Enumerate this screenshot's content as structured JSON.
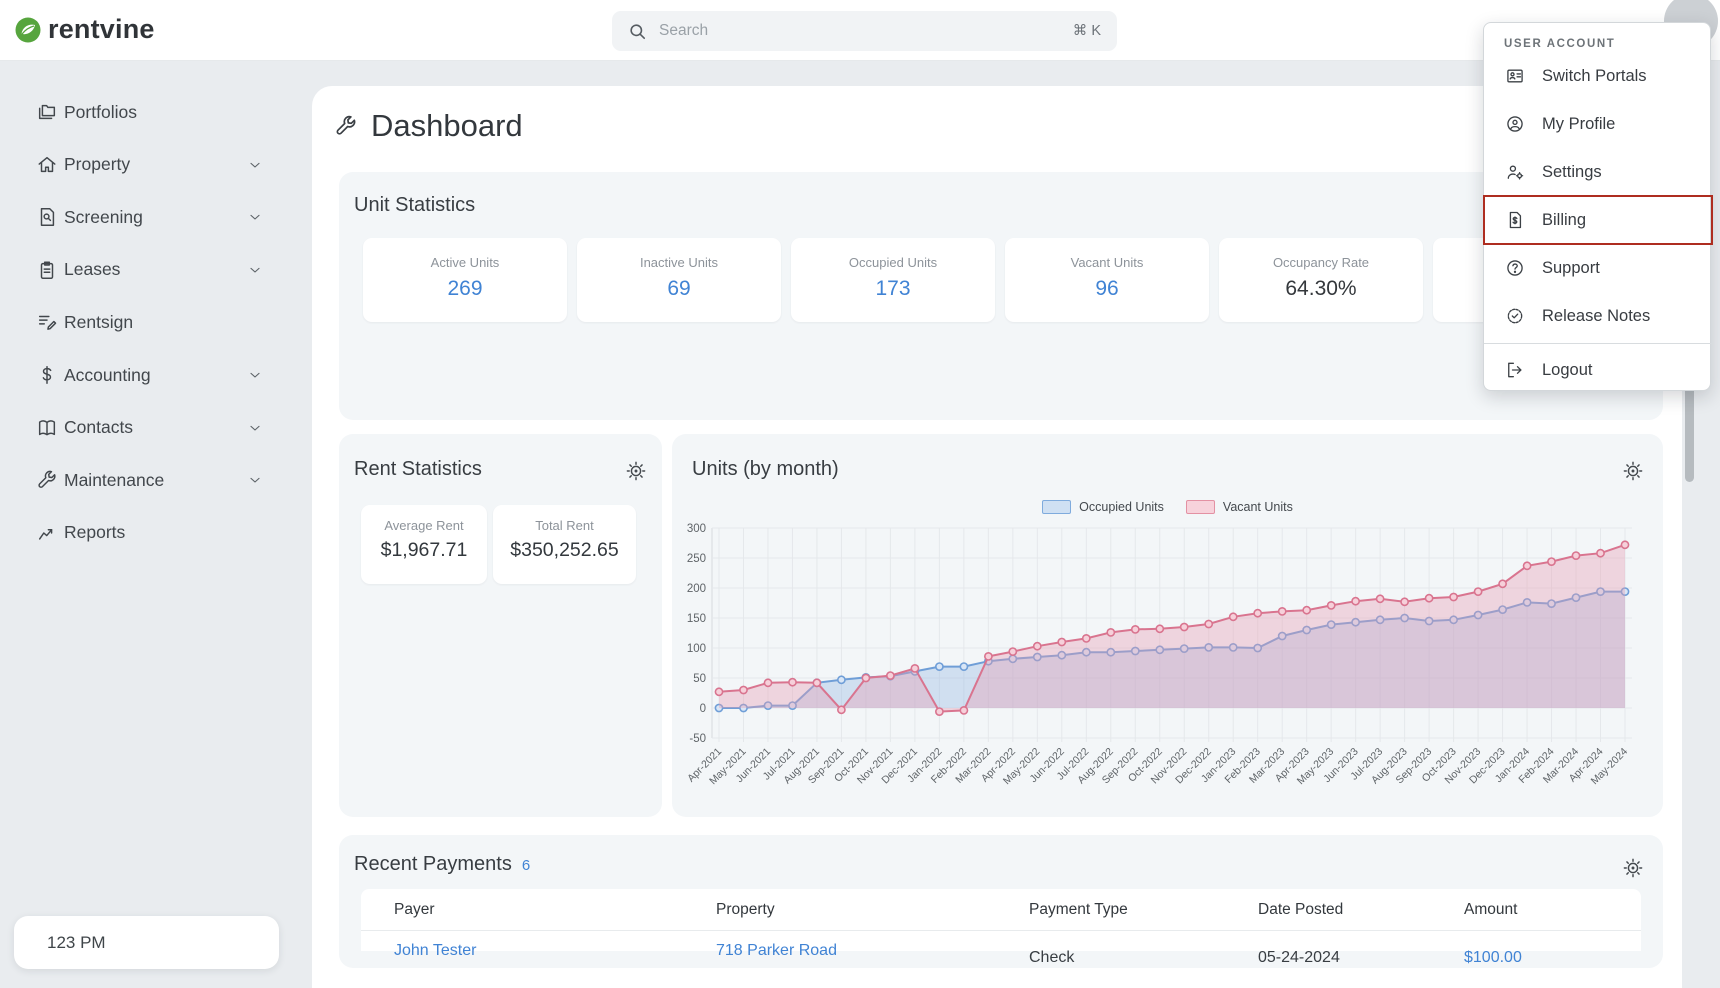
{
  "brand": {
    "name": "rentvine",
    "green": "#57a53e"
  },
  "topbar": {
    "search_placeholder": "Search",
    "search_shortcut": "⌘ K"
  },
  "sidebar": {
    "items": [
      {
        "label": "Portfolios",
        "icon": "folders",
        "chevron": false
      },
      {
        "label": "Property",
        "icon": "house",
        "chevron": true
      },
      {
        "label": "Screening",
        "icon": "doc-search",
        "chevron": true
      },
      {
        "label": "Leases",
        "icon": "clipboard",
        "chevron": true
      },
      {
        "label": "Rentsign",
        "icon": "sign",
        "chevron": false
      },
      {
        "label": "Accounting",
        "icon": "dollar",
        "chevron": true
      },
      {
        "label": "Contacts",
        "icon": "book",
        "chevron": true
      },
      {
        "label": "Maintenance",
        "icon": "wrench",
        "chevron": true
      },
      {
        "label": "Reports",
        "icon": "chart",
        "chevron": false
      }
    ]
  },
  "page": {
    "title": "Dashboard"
  },
  "unit_stats": {
    "title": "Unit Statistics",
    "cards": [
      {
        "label": "Active Units",
        "value": "269",
        "value_color": "#4083d4"
      },
      {
        "label": "Inactive Units",
        "value": "69",
        "value_color": "#4083d4"
      },
      {
        "label": "Occupied Units",
        "value": "173",
        "value_color": "#4083d4"
      },
      {
        "label": "Vacant Units",
        "value": "96",
        "value_color": "#4083d4"
      },
      {
        "label": "Occupancy Rate",
        "value": "64.30%",
        "value_color": "#34383c"
      },
      {
        "label": "",
        "value": "",
        "value_color": "#4083d4"
      }
    ]
  },
  "rent_stats": {
    "title": "Rent Statistics",
    "cards": [
      {
        "label": "Average Rent",
        "value": "$1,967.71"
      },
      {
        "label": "Total Rent",
        "value": "$350,252.65"
      }
    ]
  },
  "units_chart": {
    "title": "Units (by month)"
  },
  "chart_data": {
    "type": "line-area",
    "x": [
      "Apr-2021",
      "May-2021",
      "Jun-2021",
      "Jul-2021",
      "Aug-2021",
      "Sep-2021",
      "Oct-2021",
      "Nov-2021",
      "Dec-2021",
      "Jan-2022",
      "Feb-2022",
      "Mar-2022",
      "Apr-2022",
      "May-2022",
      "Jun-2022",
      "Jul-2022",
      "Aug-2022",
      "Sep-2022",
      "Oct-2022",
      "Nov-2022",
      "Dec-2022",
      "Jan-2023",
      "Feb-2023",
      "Mar-2023",
      "Apr-2023",
      "May-2023",
      "Jun-2023",
      "Jul-2023",
      "Aug-2023",
      "Sep-2023",
      "Oct-2023",
      "Nov-2023",
      "Dec-2023",
      "Jan-2024",
      "Feb-2024",
      "Mar-2024",
      "Apr-2024",
      "May-2024"
    ],
    "series": [
      {
        "name": "Occupied Units",
        "color": "#6f9ed7",
        "fill": "rgba(143,180,226,0.35)",
        "point_fill": "#d9e6f6",
        "swatch_fill": "#cfe0f3",
        "swatch_border": "#7fabdd",
        "values": [
          0,
          0,
          4,
          4,
          42,
          47,
          51,
          53,
          61,
          69,
          69,
          78,
          82,
          85,
          88,
          93,
          93,
          95,
          97,
          99,
          101,
          101,
          100,
          120,
          130,
          139,
          143,
          147,
          150,
          145,
          147,
          155,
          164,
          176,
          174,
          184,
          194,
          194
        ]
      },
      {
        "name": "Vacant Units",
        "color": "#d9748f",
        "fill": "rgba(231,158,178,0.38)",
        "point_fill": "#f6d0da",
        "swatch_fill": "#f7d2db",
        "swatch_border": "#e391a3",
        "values": [
          27,
          30,
          42,
          43,
          42,
          -3,
          50,
          54,
          66,
          -6,
          -4,
          86,
          94,
          103,
          110,
          116,
          126,
          131,
          132,
          135,
          140,
          152,
          158,
          161,
          163,
          171,
          178,
          182,
          177,
          183,
          185,
          194,
          207,
          237,
          244,
          254,
          258,
          272
        ]
      }
    ],
    "ylim": [
      -50,
      300
    ],
    "ytick_step": 50,
    "grid": true,
    "legend_position": "top"
  },
  "recent_payments": {
    "title": "Recent Payments",
    "count": "6",
    "columns": [
      "Payer",
      "Property",
      "Payment Type",
      "Date Posted",
      "Amount"
    ],
    "rows": [
      {
        "payer": "John Tester",
        "property": "718 Parker Road",
        "payment_type": "Check",
        "date_posted": "05-24-2024",
        "amount": "$100.00"
      }
    ]
  },
  "user_menu": {
    "header": "USER ACCOUNT",
    "highlight_color": "#ae2d20",
    "items": [
      {
        "label": "Switch Portals",
        "icon": "id-card",
        "highlighted": false
      },
      {
        "label": "My Profile",
        "icon": "user-circle",
        "highlighted": false
      },
      {
        "label": "Settings",
        "icon": "user-gear",
        "highlighted": false
      },
      {
        "label": "Billing",
        "icon": "doc-dollar",
        "highlighted": true
      },
      {
        "label": "Support",
        "icon": "help-circle",
        "highlighted": false
      },
      {
        "label": "Release Notes",
        "icon": "badge-check",
        "highlighted": false
      },
      {
        "label": "Logout",
        "icon": "logout",
        "highlighted": false,
        "divider_before": true
      }
    ]
  },
  "clock": {
    "text": "123 PM"
  },
  "colors": {
    "accent_blue": "#4083d4",
    "page_bg": "#e9ecef",
    "card_bg": "#f3f6f8"
  }
}
